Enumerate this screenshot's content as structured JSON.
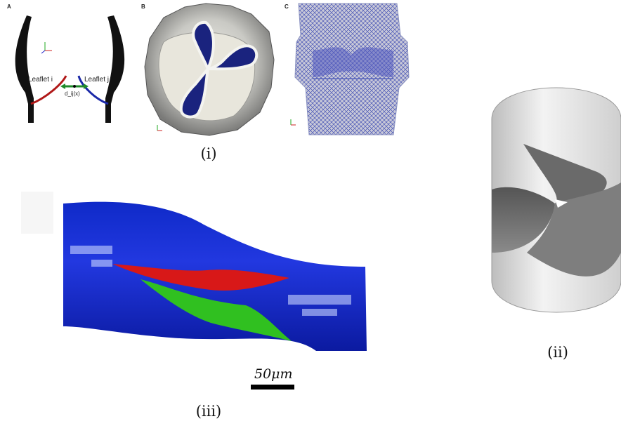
{
  "panel_a": {
    "letter": "A",
    "leaflet_i_label": "Leaflet i",
    "leaflet_j_label": "Leaflet j",
    "distance_label": "d_ij(x)"
  },
  "panel_b": {
    "letter": "B"
  },
  "panel_c": {
    "letter": "C"
  },
  "captions": {
    "i": "(i)",
    "ii": "(ii)",
    "iii": "(iii)"
  },
  "scale_bar": {
    "label": "50μm"
  },
  "colors": {
    "leaflet_i": "#b01818",
    "leaflet_j": "#1a28a8",
    "distance_arrow": "#1f8a2a",
    "vessel": "#1830d0",
    "cell_red": "#d81818",
    "cell_green": "#30c020",
    "valve_blue": "#1a237e"
  }
}
